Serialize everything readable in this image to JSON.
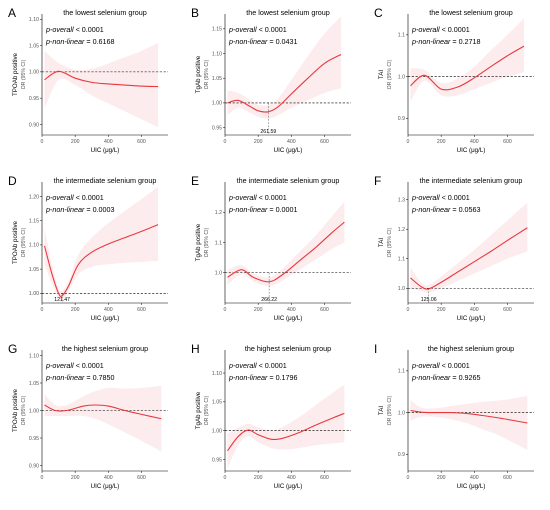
{
  "chart_data": [
    {
      "panel": "A",
      "type": "line",
      "title": "the lowest selenium group",
      "stats": [
        {
          "label": "p-overall",
          "rel": "<",
          "value": "0.0001"
        },
        {
          "label": "p-non-linear",
          "rel": "=",
          "value": "0.6168"
        }
      ],
      "ylabel_top": "TPOAb positive",
      "ylabel_bottom": "OR (95% CI)",
      "xlabel": "UIC (μg/L)",
      "xlim": [
        0,
        760
      ],
      "ylim": [
        0.88,
        1.11
      ],
      "xticks": [
        0,
        200,
        400,
        600
      ],
      "xtick_labels": [
        "0",
        "200",
        "400",
        "600"
      ],
      "yticks": [
        0.9,
        0.95,
        1.0,
        1.05,
        1.1
      ],
      "ytick_labels": [
        "0.90",
        "0.95",
        "1.00",
        "1.05",
        "1.10"
      ],
      "ref_y": 1.0,
      "ref_x": null,
      "ref_x_label": "",
      "x": [
        15,
        100,
        200,
        300,
        400,
        500,
        600,
        700
      ],
      "y": [
        0.985,
        1.001,
        0.988,
        0.98,
        0.977,
        0.975,
        0.973,
        0.972
      ],
      "lower": [
        0.93,
        0.985,
        0.975,
        0.955,
        0.94,
        0.925,
        0.91,
        0.895
      ],
      "upper": [
        1.04,
        1.017,
        1.004,
        1.006,
        1.016,
        1.028,
        1.04,
        1.055
      ]
    },
    {
      "panel": "B",
      "type": "line",
      "title": "the lowest selenium group",
      "stats": [
        {
          "label": "p-overall",
          "rel": "<",
          "value": "0.0001"
        },
        {
          "label": "p-non-linear",
          "rel": "=",
          "value": "0.0431"
        }
      ],
      "ylabel_top": "TgAb positive",
      "ylabel_bottom": "OR (95% CI)",
      "xlabel": "UIC (μg/L)",
      "xlim": [
        0,
        760
      ],
      "ylim": [
        0.935,
        1.18
      ],
      "xticks": [
        0,
        200,
        400,
        600
      ],
      "xtick_labels": [
        "0",
        "200",
        "400",
        "600"
      ],
      "yticks": [
        0.95,
        1.0,
        1.05,
        1.1,
        1.15
      ],
      "ytick_labels": [
        "0.95",
        "1.00",
        "1.05",
        "1.10",
        "1.15"
      ],
      "ref_y": 1.0,
      "ref_x": 261.59,
      "ref_x_label": "261.59",
      "x": [
        15,
        80,
        150,
        200,
        261.59,
        320,
        400,
        500,
        600,
        700
      ],
      "y": [
        1.0,
        1.005,
        0.993,
        0.984,
        0.982,
        0.992,
        1.018,
        1.05,
        1.08,
        1.098
      ],
      "lower": [
        0.975,
        0.99,
        0.98,
        0.972,
        0.968,
        0.975,
        0.99,
        1.005,
        1.02,
        1.03
      ],
      "upper": [
        1.025,
        1.02,
        1.006,
        0.996,
        0.996,
        1.009,
        1.046,
        1.095,
        1.14,
        1.175
      ]
    },
    {
      "panel": "C",
      "type": "line",
      "title": "the lowest selenium group",
      "stats": [
        {
          "label": "p-overall",
          "rel": "<",
          "value": "0.0001"
        },
        {
          "label": "p-non-linear",
          "rel": "=",
          "value": "0.2718"
        }
      ],
      "ylabel_top": "TAI",
      "ylabel_bottom": "OR (95% CI)",
      "xlabel": "UIC (μg/L)",
      "xlim": [
        0,
        760
      ],
      "ylim": [
        0.86,
        1.15
      ],
      "xticks": [
        0,
        200,
        400,
        600
      ],
      "xtick_labels": [
        "0",
        "200",
        "400",
        "600"
      ],
      "yticks": [
        0.9,
        1.0,
        1.1
      ],
      "ytick_labels": [
        "0.9",
        "1.0",
        "1.1"
      ],
      "ref_y": 1.0,
      "ref_x": null,
      "ref_x_label": "",
      "x": [
        15,
        100,
        200,
        300,
        400,
        500,
        600,
        700
      ],
      "y": [
        0.978,
        1.003,
        0.97,
        0.975,
        0.997,
        1.024,
        1.05,
        1.073
      ],
      "lower": [
        0.94,
        0.99,
        0.955,
        0.955,
        0.97,
        0.985,
        1.0,
        1.01
      ],
      "upper": [
        1.02,
        1.016,
        0.985,
        0.995,
        1.024,
        1.063,
        1.1,
        1.14
      ]
    },
    {
      "panel": "D",
      "type": "line",
      "title": "the intermediate selenium group",
      "stats": [
        {
          "label": "p-overall",
          "rel": "<",
          "value": "0.0001"
        },
        {
          "label": "p-non-linear",
          "rel": "=",
          "value": "0.0003"
        }
      ],
      "ylabel_top": "TPOAb positive",
      "ylabel_bottom": "OR (95% CI)",
      "xlabel": "UIC (μg/L)",
      "xlim": [
        0,
        760
      ],
      "ylim": [
        0.98,
        1.23
      ],
      "xticks": [
        0,
        200,
        400,
        600
      ],
      "xtick_labels": [
        "0",
        "200",
        "400",
        "600"
      ],
      "yticks": [
        1.0,
        1.05,
        1.1,
        1.15,
        1.2
      ],
      "ytick_labels": [
        "1.00",
        "1.05",
        "1.10",
        "1.15",
        "1.20"
      ],
      "ref_y": 1.0,
      "ref_x": 121.47,
      "ref_x_label": "121.47",
      "x": [
        15,
        60,
        100,
        121.47,
        160,
        220,
        300,
        400,
        500,
        600,
        700
      ],
      "y": [
        1.098,
        1.04,
        1.0,
        0.995,
        1.015,
        1.06,
        1.085,
        1.102,
        1.115,
        1.128,
        1.142
      ],
      "lower": [
        1.06,
        1.02,
        0.99,
        0.985,
        1.005,
        1.04,
        1.055,
        1.06,
        1.063,
        1.065,
        1.067
      ],
      "upper": [
        1.135,
        1.06,
        1.01,
        1.005,
        1.025,
        1.08,
        1.115,
        1.145,
        1.17,
        1.195,
        1.22
      ]
    },
    {
      "panel": "E",
      "type": "line",
      "title": "the intermediate selenium group",
      "stats": [
        {
          "label": "p-overall",
          "rel": "<",
          "value": "0.0001"
        },
        {
          "label": "p-non-linear",
          "rel": "=",
          "value": "0.0001"
        }
      ],
      "ylabel_top": "TgAb positive",
      "ylabel_bottom": "OR (95% CI)",
      "xlabel": "UIC (μg/L)",
      "xlim": [
        0,
        760
      ],
      "ylim": [
        0.9,
        1.3
      ],
      "xticks": [
        0,
        200,
        400,
        600
      ],
      "xtick_labels": [
        "0",
        "200",
        "400",
        "600"
      ],
      "yticks": [
        1.0,
        1.1,
        1.2
      ],
      "ytick_labels": [
        "1.0",
        "1.1",
        "1.2"
      ],
      "ref_y": 1.0,
      "ref_x": 266.22,
      "ref_x_label": "266.22",
      "x": [
        15,
        100,
        170,
        266.22,
        350,
        450,
        550,
        650,
        720
      ],
      "y": [
        0.985,
        1.01,
        0.985,
        0.97,
        0.995,
        1.04,
        1.085,
        1.135,
        1.167
      ],
      "lower": [
        0.96,
        0.995,
        0.972,
        0.955,
        0.975,
        1.01,
        1.045,
        1.08,
        1.1
      ],
      "upper": [
        1.01,
        1.025,
        0.998,
        0.985,
        1.015,
        1.07,
        1.125,
        1.19,
        1.235
      ]
    },
    {
      "panel": "F",
      "type": "line",
      "title": "the intermediate selenium group",
      "stats": [
        {
          "label": "p-overall",
          "rel": "<",
          "value": "0.0001"
        },
        {
          "label": "p-non-linear",
          "rel": "=",
          "value": "0.0563"
        }
      ],
      "ylabel_top": "TAI",
      "ylabel_bottom": "OR (95% CI)",
      "xlabel": "UIC (μg/L)",
      "xlim": [
        0,
        760
      ],
      "ylim": [
        0.95,
        1.36
      ],
      "xticks": [
        0,
        200,
        400,
        600
      ],
      "xtick_labels": [
        "0",
        "200",
        "400",
        "600"
      ],
      "yticks": [
        1.0,
        1.1,
        1.2,
        1.3
      ],
      "ytick_labels": [
        "1.0",
        "1.1",
        "1.2",
        "1.3"
      ],
      "ref_y": 1.0,
      "ref_x": 125.06,
      "ref_x_label": "125.06",
      "x": [
        15,
        80,
        125.06,
        200,
        300,
        400,
        500,
        600,
        720
      ],
      "y": [
        1.035,
        1.005,
        0.998,
        1.02,
        1.055,
        1.09,
        1.125,
        1.162,
        1.205
      ],
      "lower": [
        1.0,
        0.99,
        0.985,
        1.0,
        1.025,
        1.05,
        1.075,
        1.1,
        1.125
      ],
      "upper": [
        1.07,
        1.02,
        1.011,
        1.04,
        1.085,
        1.13,
        1.18,
        1.23,
        1.29
      ]
    },
    {
      "panel": "G",
      "type": "line",
      "title": "the highest selenium group",
      "stats": [
        {
          "label": "p-overall",
          "rel": "<",
          "value": "0.0001"
        },
        {
          "label": "p-non-linear",
          "rel": "=",
          "value": "0.7850"
        }
      ],
      "ylabel_top": "TPOAb positive",
      "ylabel_bottom": "OR (95% CI)",
      "xlabel": "UIC (μg/L)",
      "xlim": [
        0,
        760
      ],
      "ylim": [
        0.89,
        1.11
      ],
      "xticks": [
        0,
        200,
        400,
        600
      ],
      "xtick_labels": [
        "0",
        "200",
        "400",
        "600"
      ],
      "yticks": [
        0.9,
        0.95,
        1.0,
        1.05,
        1.1
      ],
      "ytick_labels": [
        "0.90",
        "0.95",
        "1.00",
        "1.05",
        "1.10"
      ],
      "ref_y": 1.0,
      "ref_x": null,
      "ref_x_label": "",
      "x": [
        15,
        80,
        150,
        250,
        320,
        400,
        500,
        600,
        720
      ],
      "y": [
        1.01,
        1.0,
        1.0,
        1.008,
        1.01,
        1.008,
        1.0,
        0.993,
        0.985
      ],
      "lower": [
        0.99,
        0.99,
        0.99,
        0.99,
        0.985,
        0.975,
        0.96,
        0.945,
        0.925
      ],
      "upper": [
        1.03,
        1.01,
        1.01,
        1.026,
        1.035,
        1.041,
        1.04,
        1.041,
        1.045
      ]
    },
    {
      "panel": "H",
      "type": "line",
      "title": "the highest selenium group",
      "stats": [
        {
          "label": "p-overall",
          "rel": "<",
          "value": "0.0001"
        },
        {
          "label": "p-non-linear",
          "rel": "=",
          "value": "0.1796"
        }
      ],
      "ylabel_top": "TgAb positive",
      "ylabel_bottom": "OR (95% CI)",
      "xlabel": "UIC (μg/L)",
      "xlim": [
        0,
        760
      ],
      "ylim": [
        0.93,
        1.14
      ],
      "xticks": [
        0,
        200,
        400,
        600
      ],
      "xtick_labels": [
        "0",
        "200",
        "400",
        "600"
      ],
      "yticks": [
        0.95,
        1.0,
        1.05,
        1.1
      ],
      "ytick_labels": [
        "0.95",
        "1.00",
        "1.05",
        "1.10"
      ],
      "ref_y": 1.0,
      "ref_x": null,
      "ref_x_label": "",
      "x": [
        15,
        80,
        140,
        200,
        280,
        350,
        450,
        550,
        650,
        720
      ],
      "y": [
        0.965,
        0.99,
        1.001,
        0.993,
        0.985,
        0.987,
        0.997,
        1.01,
        1.022,
        1.03
      ],
      "lower": [
        0.935,
        0.975,
        0.99,
        0.98,
        0.97,
        0.967,
        0.97,
        0.975,
        0.978,
        0.98
      ],
      "upper": [
        0.995,
        1.005,
        1.012,
        1.006,
        1.0,
        1.007,
        1.024,
        1.045,
        1.066,
        1.08
      ]
    },
    {
      "panel": "I",
      "type": "line",
      "title": "the highest selenium group",
      "stats": [
        {
          "label": "p-overall",
          "rel": "<",
          "value": "0.0001"
        },
        {
          "label": "p-non-linear",
          "rel": "=",
          "value": "0.9265"
        }
      ],
      "ylabel_top": "TAI",
      "ylabel_bottom": "OR (95% CI)",
      "xlabel": "UIC (μg/L)",
      "xlim": [
        0,
        760
      ],
      "ylim": [
        0.86,
        1.15
      ],
      "xticks": [
        0,
        200,
        400,
        600
      ],
      "xtick_labels": [
        "0",
        "200",
        "400",
        "600"
      ],
      "yticks": [
        0.9,
        1.0,
        1.1
      ],
      "ytick_labels": [
        "0.9",
        "1.0",
        "1.1"
      ],
      "ref_y": 1.0,
      "ref_x": null,
      "ref_x_label": "",
      "x": [
        15,
        80,
        150,
        250,
        350,
        450,
        550,
        650,
        720
      ],
      "y": [
        1.005,
        1.001,
        1.0,
        1.0,
        0.998,
        0.993,
        0.987,
        0.98,
        0.975
      ],
      "lower": [
        0.98,
        0.99,
        0.99,
        0.985,
        0.975,
        0.96,
        0.945,
        0.925,
        0.91
      ],
      "upper": [
        1.03,
        1.012,
        1.01,
        1.015,
        1.021,
        1.026,
        1.029,
        1.035,
        1.04
      ]
    }
  ],
  "colors": {
    "curve": "#e8383d",
    "ci_band": "#f8c8cf",
    "reference_line": "#000000"
  }
}
